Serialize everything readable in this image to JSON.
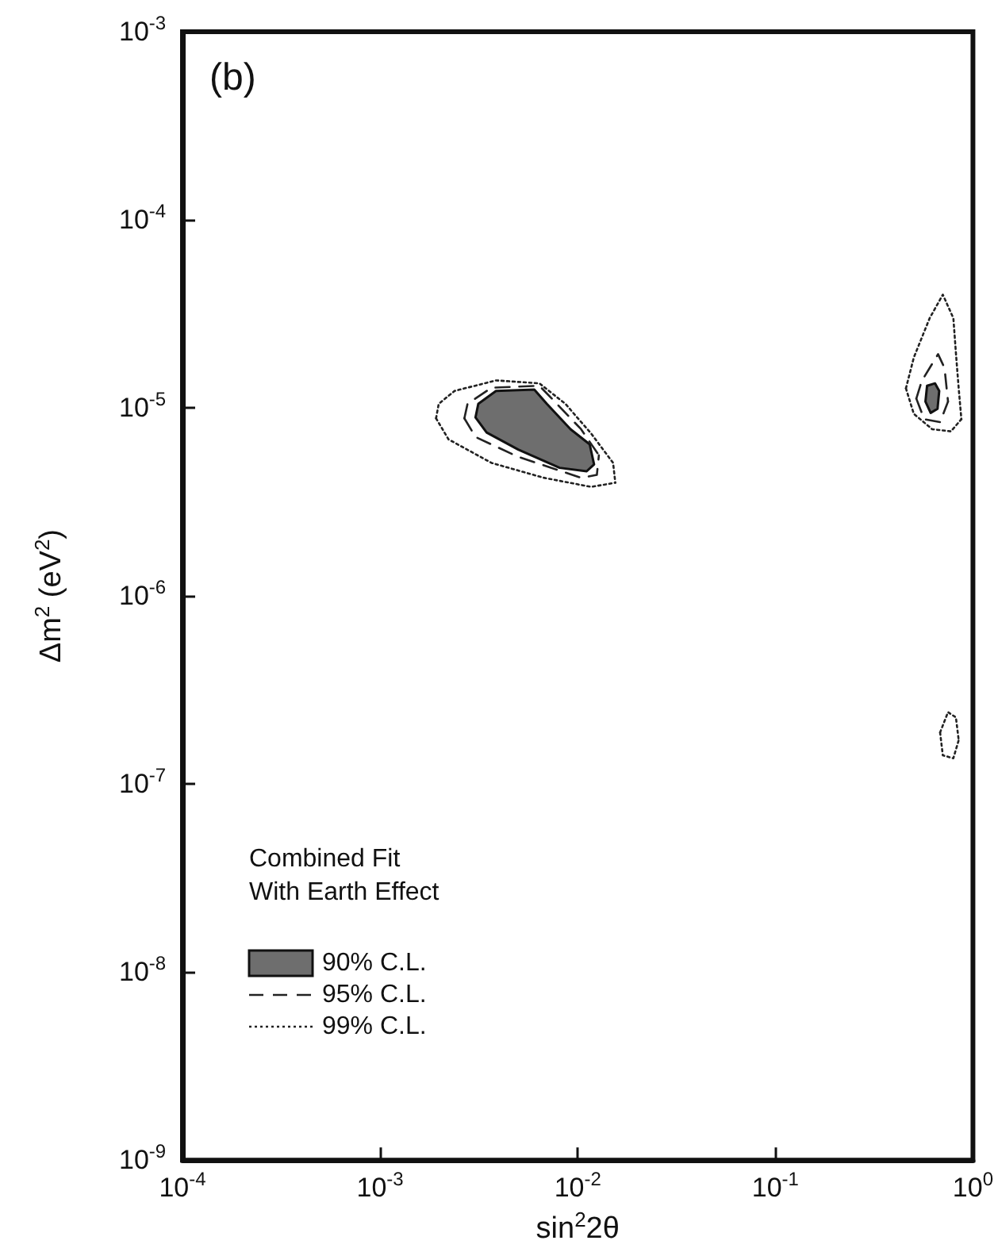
{
  "chart_data": {
    "type": "line",
    "title": "(b)",
    "xlabel": "sin$^{2}$2θ",
    "ylabel": "Δm$^{2}$ (eV$^{2}$)",
    "legend_title": "Combined Fit\nWith Earth Effect",
    "log": "xy",
    "grid": false,
    "legend": "bottom left",
    "xlim": [
      0.0001,
      1
    ],
    "xticks": [
      {
        "value": 0.0001,
        "label": "10$^{-4}$"
      },
      {
        "value": 0.001,
        "label": "10$^{-3}$"
      },
      {
        "value": 0.01,
        "label": "10$^{-2}$"
      },
      {
        "value": 0.1,
        "label": "10$^{-1}$"
      },
      {
        "value": 1,
        "label": "10$^{0}$"
      }
    ],
    "ylim": [
      1e-09,
      0.001
    ],
    "yticks": [
      {
        "value": 1e-09,
        "label": "10$^{-9}$"
      },
      {
        "value": 1e-08,
        "label": "10$^{-8}$"
      },
      {
        "value": 1e-07,
        "label": "10$^{-7}$"
      },
      {
        "value": 1e-06,
        "label": "10$^{-6}$"
      },
      {
        "value": 1e-05,
        "label": "10$^{-5}$"
      },
      {
        "value": 0.0001,
        "label": "10$^{-4}$"
      },
      {
        "value": 0.001,
        "label": "10$^{-3}$"
      }
    ],
    "series": [
      {
        "name": "90% C.L.",
        "type": "area",
        "color": "#6e6e6e",
        "line_style": "solid",
        "x": [
          0.00314,
          0.00386,
          0.00603,
          0.00698,
          0.0092,
          0.0115,
          0.0121,
          0.0111,
          0.0081,
          0.005,
          0.00346,
          0.00304,
          0.00314,
          null,
          0.586,
          0.643,
          0.675,
          0.662,
          0.611,
          0.575,
          0.586
        ],
        "values": [
          1.05e-05,
          1.23e-05,
          1.25e-05,
          1.05e-05,
          7.7e-06,
          6.4e-06,
          5e-06,
          4.6e-06,
          4.8e-06,
          6e-06,
          7.4e-06,
          8.9e-06,
          1.05e-05,
          null,
          1.31e-05,
          1.35e-05,
          1.23e-05,
          9.9e-06,
          9.4e-06,
          1.08e-05,
          1.31e-05
        ]
      },
      {
        "name": "95% C.L.",
        "type": "line",
        "color": "#222222",
        "line_style": "dashed",
        "x": [
          0.00267,
          0.00277,
          0.00366,
          0.0064,
          0.00765,
          0.0104,
          0.0128,
          null,
          0.00267,
          0.00304,
          0.00498,
          0.0104,
          0.0125,
          0.0128,
          null,
          0.517,
          0.551,
          0.666,
          0.718,
          0.748,
          null,
          0.517,
          0.567,
          0.682,
          0.748
        ],
        "values": [
          8.8e-06,
          1.05e-05,
          1.28e-05,
          1.31e-05,
          1.08e-05,
          7.7e-06,
          5.6e-06,
          null,
          8.8e-06,
          7e-06,
          5.5e-06,
          4.25e-06,
          4.4e-06,
          5.6e-06,
          null,
          1.12e-05,
          1.39e-05,
          1.93e-05,
          1.63e-05,
          1.08e-05,
          null,
          1.12e-05,
          8.7e-06,
          8.4e-06,
          1.08e-05
        ]
      },
      {
        "name": "99% C.L.",
        "type": "line",
        "color": "#222222",
        "line_style": "dotted",
        "x": [
          0.00192,
          0.00198,
          0.00238,
          0.00386,
          0.0064,
          0.00867,
          0.0117,
          0.0151,
          0.0155,
          null,
          0.00192,
          0.00222,
          0.00366,
          0.00673,
          0.0117,
          0.0155,
          null,
          0.458,
          0.502,
          0.604,
          0.704,
          0.796,
          0.82,
          0.847,
          0.874,
          null,
          0.458,
          0.502,
          0.622,
          0.773,
          0.874,
          null,
          0.682,
          0.748,
          0.82,
          0.847,
          null,
          0.682,
          0.704,
          0.796,
          0.847
        ],
        "values": [
          8.8e-06,
          1.05e-05,
          1.23e-05,
          1.4e-05,
          1.35e-05,
          1.05e-05,
          7.3e-06,
          5.1e-06,
          4e-06,
          null,
          8.8e-06,
          6.8e-06,
          5.1e-06,
          4.25e-06,
          3.8e-06,
          4e-06,
          null,
          1.27e-05,
          1.85e-05,
          3e-05,
          4e-05,
          3e-05,
          1.96e-05,
          1.27e-05,
          8.7e-06,
          null,
          1.27e-05,
          9.3e-06,
          7.7e-06,
          7.5e-06,
          8.7e-06,
          null,
          1.88e-07,
          2.41e-07,
          2.26e-07,
          1.71e-07,
          null,
          1.88e-07,
          1.42e-07,
          1.37e-07,
          1.71e-07
        ]
      }
    ]
  }
}
